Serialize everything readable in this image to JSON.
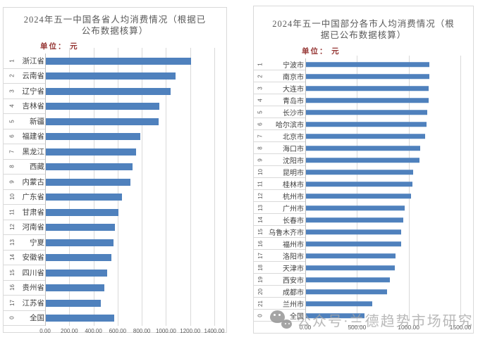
{
  "watermark": {
    "icon": "wechat-icon",
    "text": "公众号·兰德趋势市场研究"
  },
  "charts": [
    {
      "id": "provinces",
      "title": "2024年五一中国各省人均消费情况（根据已公布数据核算）",
      "title_lines": [
        "2024年五一中国各省人均消费情况（根据已",
        "公布数据核算）"
      ],
      "unit_label": "单位： 元",
      "chart_data": {
        "type": "bar",
        "orientation": "horizontal",
        "bar_color": "#4f81bd",
        "grid": true,
        "xlim": [
          0,
          1400
        ],
        "x_tick_labels": [
          "0.00",
          "200.00",
          "400.00",
          "600.00",
          "800.00",
          "1000.00",
          "1200.00",
          "1400.00"
        ],
        "ranks": [
          "1",
          "2",
          "3",
          "4",
          "5",
          "6",
          "7",
          "8",
          "9",
          "10",
          "11",
          "12",
          "13",
          "14",
          "15",
          "16",
          "17",
          "0"
        ],
        "categories": [
          "浙江省",
          "云南省",
          "辽宁省",
          "吉林省",
          "新疆",
          "福建省",
          "黑龙江",
          "西藏",
          "内蒙古",
          "广东省",
          "甘肃省",
          "河南省",
          "宁夏",
          "安徽省",
          "四川省",
          "贵州省",
          "江苏省",
          "全国"
        ],
        "values": [
          1209,
          1078,
          1039,
          945,
          938,
          784,
          752,
          723,
          704,
          630,
          603,
          576,
          563,
          546,
          510,
          484,
          455,
          566
        ]
      }
    },
    {
      "id": "cities",
      "title": "2024年五一中国部分各市人均消费情况（根据已公布数据核算）",
      "title_lines": [
        "2024年五一中国部分各市人均消费情况（根",
        "据已公布数据核算）"
      ],
      "unit_label": "单位： 元",
      "chart_data": {
        "type": "bar",
        "orientation": "horizontal",
        "bar_color": "#4f81bd",
        "grid": true,
        "xlim": [
          0,
          1500
        ],
        "x_tick_labels": [
          "0.00",
          "500.00",
          "1000.00",
          "1500.00"
        ],
        "ranks": [
          "1",
          "2",
          "3",
          "4",
          "5",
          "6",
          "7",
          "8",
          "9",
          "10",
          "11",
          "12",
          "13",
          "14",
          "15",
          "16",
          "17",
          "18",
          "19",
          "20",
          "21",
          "0"
        ],
        "categories": [
          "宁波市",
          "南京市",
          "大连市",
          "青岛市",
          "长沙市",
          "哈尔滨市",
          "北京市",
          "海口市",
          "沈阳市",
          "昆明市",
          "桂林市",
          "杭州市",
          "广州市",
          "长春市",
          "乌鲁木齐市",
          "福州市",
          "洛阳市",
          "天津市",
          "西安市",
          "成都市",
          "兰州市",
          "全国"
        ],
        "values": [
          1202,
          1199,
          1193,
          1190,
          1180,
          1168,
          1157,
          1108,
          1101,
          1044,
          1037,
          1021,
          960,
          944,
          928,
          926,
          867,
          862,
          813,
          790,
          641,
          566
        ]
      }
    }
  ]
}
